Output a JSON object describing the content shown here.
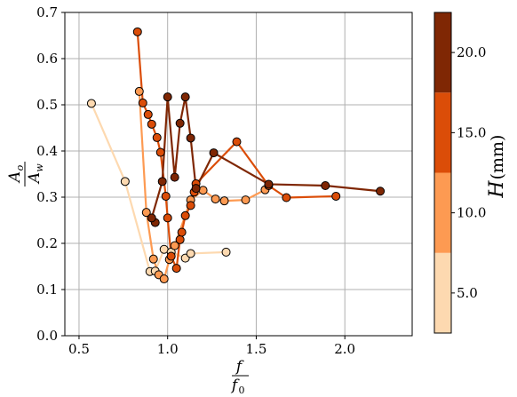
{
  "chart_data": {
    "type": "scatter",
    "title": "",
    "xlabel": {
      "numerator": "f",
      "denominator": "f",
      "denominator_subscript": "0"
    },
    "ylabel": {
      "numerator": "A",
      "numerator_subscript": "o",
      "denominator": "A",
      "denominator_subscript": "w"
    },
    "xlim": [
      0.42,
      2.38
    ],
    "ylim": [
      0.0,
      0.7
    ],
    "x_ticks": [
      "0.5",
      "1.0",
      "1.5",
      "2.0"
    ],
    "y_ticks": [
      "0.0",
      "0.1",
      "0.2",
      "0.3",
      "0.4",
      "0.5",
      "0.6",
      "0.7"
    ],
    "grid": true,
    "colorbar": {
      "label_var": "H",
      "label_unit": "(mm)",
      "range": [
        2.5,
        22.5
      ],
      "ticks": [
        "5.0",
        "10.0",
        "15.0",
        "20.0"
      ],
      "bands": [
        {
          "from": 2.5,
          "to": 7.5,
          "color": "#fdd9b0"
        },
        {
          "from": 7.5,
          "to": 12.5,
          "color": "#fd9a52"
        },
        {
          "from": 12.5,
          "to": 17.5,
          "color": "#db4d08"
        },
        {
          "from": 17.5,
          "to": 22.5,
          "color": "#7f2704"
        }
      ]
    },
    "series": [
      {
        "color": "#fdd9b0",
        "points": [
          [
            0.57,
            0.503
          ],
          [
            0.76,
            0.334
          ],
          [
            0.9,
            0.139
          ],
          [
            0.93,
            0.14
          ],
          [
            0.98,
            0.187
          ],
          [
            1.02,
            0.181
          ],
          [
            1.1,
            0.168
          ],
          [
            1.13,
            0.178
          ],
          [
            1.33,
            0.181
          ]
        ]
      },
      {
        "color": "#fd9a52",
        "points": [
          [
            0.84,
            0.529
          ],
          [
            0.88,
            0.267
          ],
          [
            0.92,
            0.166
          ],
          [
            0.95,
            0.132
          ],
          [
            0.98,
            0.123
          ],
          [
            1.01,
            0.165
          ],
          [
            1.04,
            0.195
          ],
          [
            1.13,
            0.294
          ],
          [
            1.2,
            0.315
          ],
          [
            1.27,
            0.296
          ],
          [
            1.32,
            0.292
          ],
          [
            1.44,
            0.294
          ],
          [
            1.55,
            0.316
          ]
        ]
      },
      {
        "color": "#db4d08",
        "points": [
          [
            0.83,
            0.658
          ],
          [
            0.86,
            0.504
          ],
          [
            0.89,
            0.479
          ],
          [
            0.91,
            0.458
          ],
          [
            0.94,
            0.429
          ],
          [
            0.96,
            0.397
          ],
          [
            0.99,
            0.302
          ],
          [
            1.0,
            0.255
          ],
          [
            1.02,
            0.172
          ],
          [
            1.05,
            0.146
          ],
          [
            1.07,
            0.208
          ],
          [
            1.08,
            0.224
          ],
          [
            1.1,
            0.26
          ],
          [
            1.13,
            0.282
          ],
          [
            1.15,
            0.311
          ],
          [
            1.16,
            0.329
          ],
          [
            1.39,
            0.42
          ],
          [
            1.57,
            0.325
          ],
          [
            1.67,
            0.299
          ],
          [
            1.95,
            0.302
          ]
        ]
      },
      {
        "color": "#7f2704",
        "points": [
          [
            0.93,
            0.245
          ],
          [
            0.91,
            0.255
          ],
          [
            0.97,
            0.334
          ],
          [
            1.0,
            0.517
          ],
          [
            1.04,
            0.343
          ],
          [
            1.07,
            0.46
          ],
          [
            1.1,
            0.517
          ],
          [
            1.13,
            0.428
          ],
          [
            1.16,
            0.319
          ],
          [
            1.26,
            0.396
          ],
          [
            1.57,
            0.328
          ],
          [
            1.89,
            0.325
          ],
          [
            2.2,
            0.313
          ]
        ]
      }
    ]
  }
}
